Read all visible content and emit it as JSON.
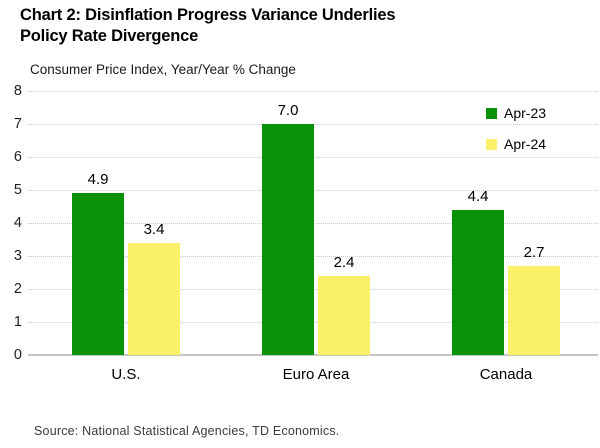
{
  "title_lines": [
    "Chart 2: Disinflation Progress Variance Underlies",
    "Policy Rate Divergence"
  ],
  "source": "Source: National Statistical Agencies, TD Economics.",
  "colors": {
    "apr23_green": "#089208",
    "apr24_yellow": "#FBF168",
    "gridline": "#cbcbcb",
    "axis_line": "#c6c6c6"
  },
  "chart_data": {
    "type": "bar",
    "title": "Chart 2: Disinflation Progress Variance Underlies Policy Rate Divergence",
    "subtitle": "Consumer Price Index, Year/Year % Change",
    "categories": [
      "U.S.",
      "Euro Area",
      "Canada"
    ],
    "series": [
      {
        "name": "Apr-23",
        "color": "#089208",
        "values": [
          4.9,
          7.0,
          4.4
        ]
      },
      {
        "name": "Apr-24",
        "color": "#FBF168",
        "values": [
          3.4,
          2.4,
          2.7
        ]
      }
    ],
    "ylim": [
      0,
      8
    ],
    "ytick_step": 1,
    "ytick_labels": [
      "0",
      "1",
      "2",
      "3",
      "4",
      "5",
      "6",
      "7",
      "8"
    ],
    "grid": "horizontal-dotted",
    "legend_position": "top-right",
    "value_labels": true,
    "value_label_format": "one-decimal"
  }
}
